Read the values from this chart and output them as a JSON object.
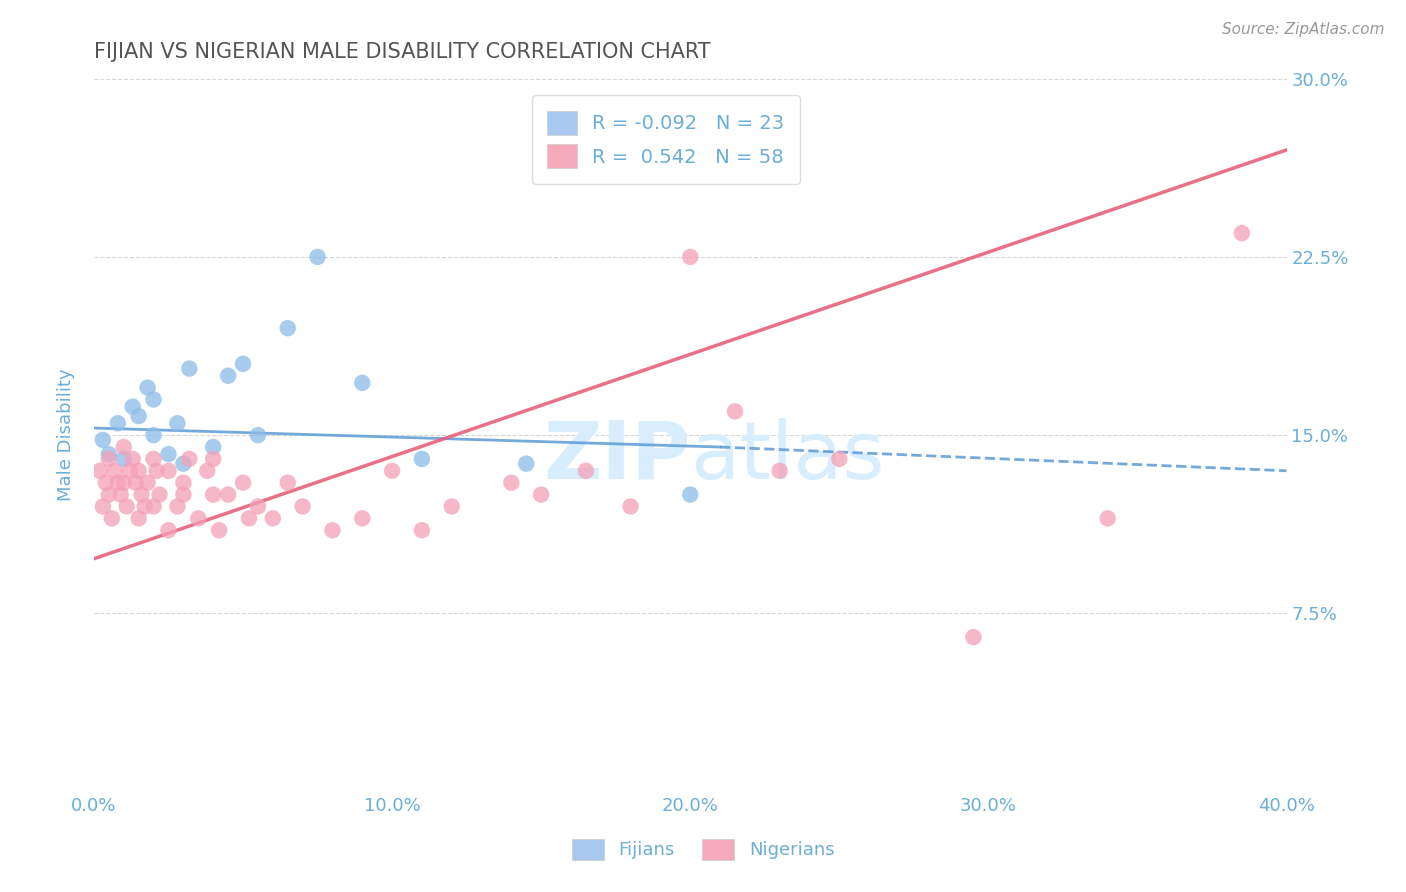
{
  "title": "FIJIAN VS NIGERIAN MALE DISABILITY CORRELATION CHART",
  "source": "Source: ZipAtlas.com",
  "ylabel": "Male Disability",
  "xlim": [
    0.0,
    40.0
  ],
  "ylim": [
    0.0,
    30.0
  ],
  "xticks": [
    0.0,
    10.0,
    20.0,
    30.0,
    40.0
  ],
  "yticks": [
    0.0,
    7.5,
    15.0,
    22.5,
    30.0
  ],
  "fijian_color": "#8BBCE8",
  "nigerian_color": "#F4A0B8",
  "fijian_line_color": "#5B9BD5",
  "nigerian_line_color": "#E8607A",
  "legend_fijian_color": "#A8C8F0",
  "legend_nigerian_color": "#F4AABB",
  "R_fijian": -0.092,
  "N_fijian": 23,
  "R_nigerian": 0.542,
  "N_nigerian": 58,
  "fijian_line_start_x": 0.0,
  "fijian_line_start_y": 15.3,
  "fijian_line_end_x": 21.0,
  "fijian_line_end_y": 14.5,
  "fijian_line_dash_start_x": 21.0,
  "fijian_line_dash_start_y": 14.5,
  "fijian_line_dash_end_x": 40.0,
  "fijian_line_dash_end_y": 13.5,
  "nigerian_line_start_x": 0.0,
  "nigerian_line_start_y": 9.8,
  "nigerian_line_end_x": 40.0,
  "nigerian_line_end_y": 27.0,
  "fijian_x": [
    0.3,
    0.5,
    0.8,
    1.0,
    1.3,
    1.5,
    1.8,
    2.0,
    2.0,
    2.5,
    2.8,
    3.0,
    3.2,
    4.0,
    4.5,
    5.0,
    5.5,
    6.5,
    7.5,
    9.0,
    11.0,
    14.5,
    20.0
  ],
  "fijian_y": [
    14.8,
    14.2,
    15.5,
    14.0,
    16.2,
    15.8,
    17.0,
    16.5,
    15.0,
    14.2,
    15.5,
    13.8,
    17.8,
    14.5,
    17.5,
    18.0,
    15.0,
    19.5,
    22.5,
    17.2,
    14.0,
    13.8,
    12.5
  ],
  "nigerian_x": [
    0.2,
    0.3,
    0.4,
    0.5,
    0.5,
    0.6,
    0.7,
    0.8,
    0.9,
    1.0,
    1.0,
    1.1,
    1.2,
    1.3,
    1.4,
    1.5,
    1.5,
    1.6,
    1.7,
    1.8,
    2.0,
    2.0,
    2.1,
    2.2,
    2.5,
    2.5,
    2.8,
    3.0,
    3.0,
    3.2,
    3.5,
    3.8,
    4.0,
    4.0,
    4.2,
    4.5,
    5.0,
    5.2,
    5.5,
    6.0,
    6.5,
    7.0,
    8.0,
    9.0,
    10.0,
    11.0,
    12.0,
    14.0,
    15.0,
    16.5,
    18.0,
    20.0,
    21.5,
    23.0,
    25.0,
    29.5,
    34.0,
    38.5
  ],
  "nigerian_y": [
    13.5,
    12.0,
    13.0,
    14.0,
    12.5,
    11.5,
    13.5,
    13.0,
    12.5,
    14.5,
    13.0,
    12.0,
    13.5,
    14.0,
    13.0,
    11.5,
    13.5,
    12.5,
    12.0,
    13.0,
    14.0,
    12.0,
    13.5,
    12.5,
    11.0,
    13.5,
    12.0,
    13.0,
    12.5,
    14.0,
    11.5,
    13.5,
    12.5,
    14.0,
    11.0,
    12.5,
    13.0,
    11.5,
    12.0,
    11.5,
    13.0,
    12.0,
    11.0,
    11.5,
    13.5,
    11.0,
    12.0,
    13.0,
    12.5,
    13.5,
    12.0,
    22.5,
    16.0,
    13.5,
    14.0,
    6.5,
    11.5,
    23.5
  ],
  "background_color": "#FFFFFF",
  "grid_color": "#CCCCCC",
  "title_color": "#555555",
  "axis_label_color": "#6BAED6",
  "tick_label_color": "#6BAED6",
  "watermark_color": "#D8EEFF"
}
